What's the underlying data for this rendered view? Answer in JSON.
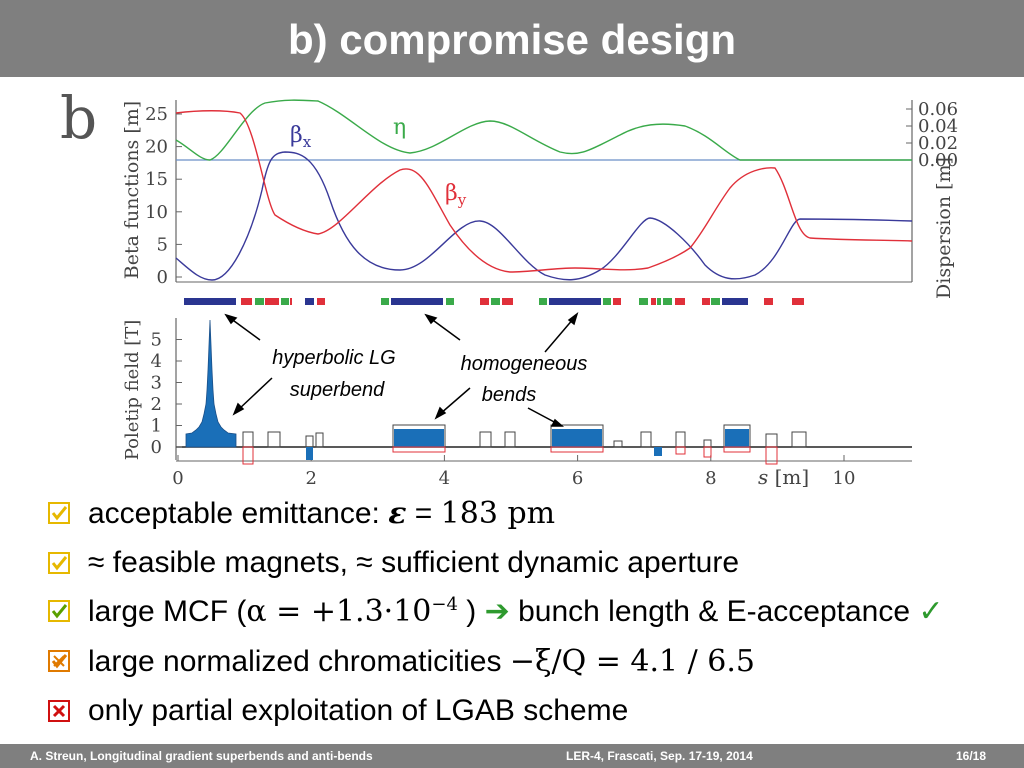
{
  "title": "b) compromise design",
  "figure": {
    "panel_letter": "b",
    "top_plot": {
      "ylabel_left": "Beta functions [m]",
      "ylabel_right": "Dispersion [m]",
      "yticks_left": [
        "0",
        "5",
        "10",
        "15",
        "20",
        "25"
      ],
      "yticks_right": [
        "0.00",
        "0.02",
        "0.04",
        "0.06"
      ],
      "label_betax_main": "β",
      "label_betax_sub": "x",
      "label_betay_main": "β",
      "label_betay_sub": "y",
      "label_eta": "η",
      "colors": {
        "betax": "#3a3a9a",
        "betay": "#e0303a",
        "eta": "#3aaa4a",
        "baseline": "#6a8fc8"
      }
    },
    "bottom_plot": {
      "ylabel": "Poletip field [T]",
      "yticks": [
        "0",
        "1",
        "2",
        "3",
        "4",
        "5"
      ],
      "xticks": [
        "0",
        "2",
        "4",
        "6",
        "8",
        "10"
      ],
      "xlabel_var": "s",
      "xlabel_unit": "[m]",
      "annotation_lg_line1": "hyperbolic LG",
      "annotation_lg_line2": "superbend",
      "annotation_hom_line1": "homogeneous",
      "annotation_hom_line2": "bends",
      "colors": {
        "bend": "#1a6fb8",
        "quad": "#e0303a",
        "sext": "#3aaa4a",
        "dipole_bar": "#2a3590"
      }
    }
  },
  "bullets": [
    {
      "status": "check",
      "text_before": "acceptable emittance: ",
      "symbol": "ε",
      "text_mid": " = ",
      "value": "183 pm"
    },
    {
      "status": "check",
      "text": "≈ feasible magnets, ≈ sufficient dynamic aperture"
    },
    {
      "status": "check",
      "text_before": "large MCF (",
      "alpha": "α = +1.3·10",
      "exp": "−4",
      "text_after": " ) ",
      "arrow": "➔",
      "text_end": " bunch length & E-acceptance ",
      "tick": "✓"
    },
    {
      "status": "partial",
      "text_before": "large normalized chromaticities ",
      "math": "−ξ/Q = 4.1 / 6.5"
    },
    {
      "status": "fail",
      "text": "only partial exploitation of LGAB scheme"
    }
  ],
  "footer": {
    "left": "A. Streun, Longitudinal gradient superbends and anti-bends",
    "center": "LER-4, Frascati,  Sep. 17-19, 2014",
    "right": "16/18"
  },
  "status_colors": {
    "check": "#e6b800",
    "partial": "#e07a00",
    "fail": "#d01010"
  }
}
